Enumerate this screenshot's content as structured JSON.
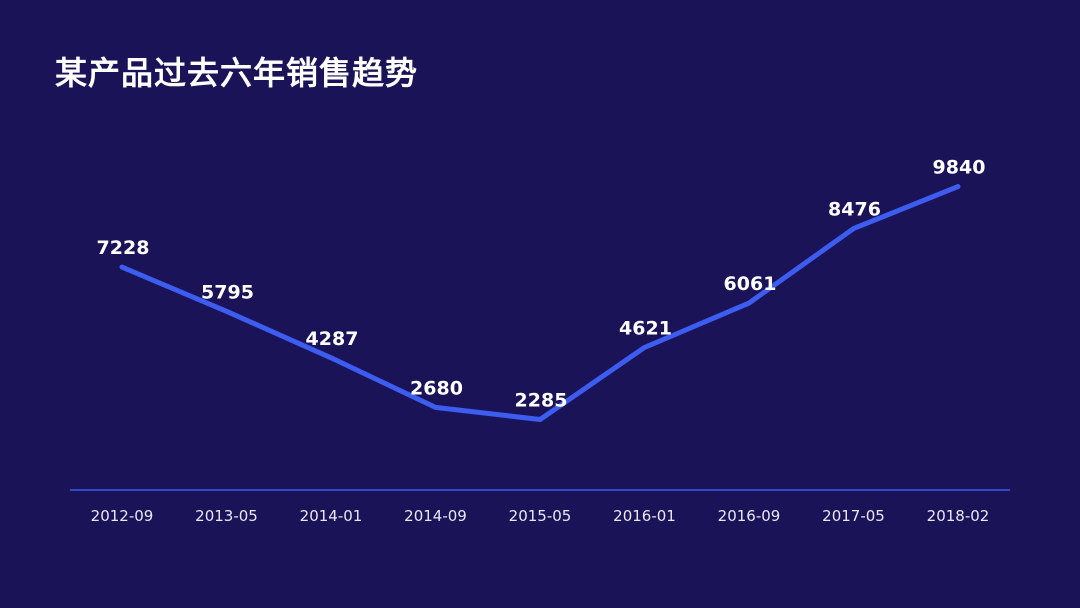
{
  "chart_data": {
    "type": "line",
    "title": "某产品过去六年销售趋势",
    "categories": [
      "2012-09",
      "2013-05",
      "2014-01",
      "2014-09",
      "2015-05",
      "2016-01",
      "2016-09",
      "2017-05",
      "2018-02"
    ],
    "values": [
      7228,
      5795,
      4287,
      2680,
      2285,
      4621,
      6061,
      8476,
      9840
    ],
    "ylim": [
      0,
      11000
    ],
    "grid": false,
    "legend": "none",
    "colors": {
      "background": "#1b1358",
      "line": "#3d5cf0",
      "axis": "#3d5cf0",
      "text": "#ffffff"
    }
  }
}
